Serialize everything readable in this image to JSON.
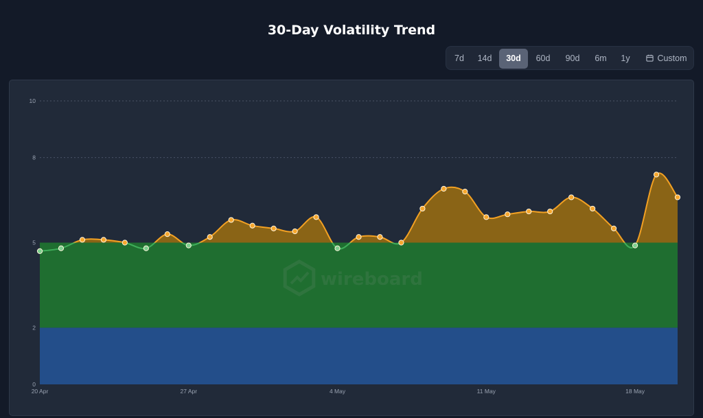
{
  "title": "30-Day Volatility Trend",
  "range_selector": {
    "options": [
      "7d",
      "14d",
      "30d",
      "60d",
      "90d",
      "6m",
      "1y"
    ],
    "active": "30d",
    "custom_label": "Custom"
  },
  "watermark": "wireboard",
  "colors": {
    "background": "#131a28",
    "panel": "#212a39",
    "band_low": "#234e8a",
    "band_mid": "#1f6e30",
    "above_threshold_fill": "#8a6416",
    "line_above": "#f3a123",
    "line_below": "#3fae5a"
  },
  "chart_data": {
    "type": "area",
    "title": "30-Day Volatility Trend",
    "xlabel": "",
    "ylabel": "",
    "ylim": [
      0,
      10
    ],
    "yticks": [
      0,
      2,
      5,
      8,
      10
    ],
    "x_tick_labels": [
      "20 Apr",
      "27 Apr",
      "4 May",
      "11 May",
      "18 May"
    ],
    "threshold": 5,
    "bands": [
      {
        "from": 0,
        "to": 2
      },
      {
        "from": 2,
        "to": 5
      }
    ],
    "grid": true,
    "series": [
      {
        "x": [
          "20 Apr",
          "21 Apr",
          "22 Apr",
          "23 Apr",
          "24 Apr",
          "25 Apr",
          "26 Apr",
          "27 Apr",
          "28 Apr",
          "29 Apr",
          "30 Apr",
          "1 May",
          "2 May",
          "3 May",
          "4 May",
          "5 May",
          "6 May",
          "7 May",
          "8 May",
          "9 May",
          "10 May",
          "11 May",
          "12 May",
          "13 May",
          "14 May",
          "15 May",
          "16 May",
          "17 May",
          "18 May",
          "19 May",
          "20 May"
        ],
        "values": [
          4.7,
          4.8,
          5.1,
          5.1,
          5.0,
          4.8,
          5.3,
          4.9,
          5.2,
          5.8,
          5.6,
          5.5,
          5.4,
          5.9,
          4.8,
          5.2,
          5.2,
          5.0,
          6.2,
          6.9,
          6.8,
          5.9,
          6.0,
          6.1,
          6.1,
          6.6,
          6.2,
          5.5,
          4.9,
          7.4,
          6.6
        ]
      }
    ]
  }
}
